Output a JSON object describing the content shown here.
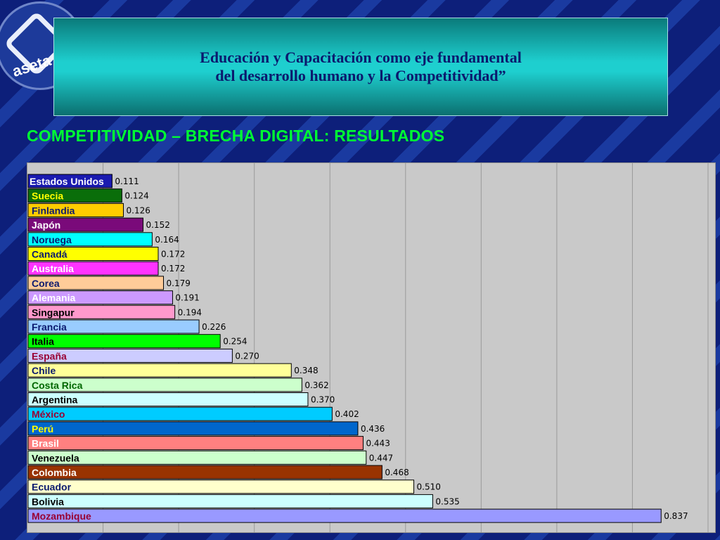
{
  "header": {
    "logo_text": "aseta",
    "title_line1": "Educación y Capacitación como eje fundamental",
    "title_line2": "del desarrollo humano y la Competitividad”"
  },
  "subtitle": "COMPETITIVIDAD – BRECHA DIGITAL: RESULTADOS",
  "chart_data": {
    "type": "bar",
    "orientation": "horizontal",
    "title": "",
    "xlabel": "",
    "ylabel": "",
    "xlim": [
      0,
      0.9
    ],
    "grid": true,
    "categories": [
      "Estados Unidos",
      "Suecia",
      "Finlandia",
      "Japón",
      "Noruega",
      "Canadá",
      "Australia",
      "Corea",
      "Alemania",
      "Singapur",
      "Francia",
      "Italia",
      "España",
      "Chile",
      "Costa Rica",
      "Argentina",
      "México",
      "Perú",
      "Brasil",
      "Venezuela",
      "Colombia",
      "Ecuador",
      "Bolivia",
      "Mozambique"
    ],
    "values": [
      0.111,
      0.124,
      0.126,
      0.152,
      0.164,
      0.172,
      0.172,
      0.179,
      0.191,
      0.194,
      0.226,
      0.254,
      0.27,
      0.348,
      0.362,
      0.37,
      0.402,
      0.436,
      0.443,
      0.447,
      0.468,
      0.51,
      0.535,
      0.837
    ],
    "value_labels": [
      "0.111",
      "0.124",
      "0.126",
      "0.152",
      "0.164",
      "0.172",
      "0.172",
      "0.179",
      "0.191",
      "0.194",
      "0.226",
      "0.254",
      "0.270",
      "0.348",
      "0.362",
      "0.370",
      "0.402",
      "0.436",
      "0.443",
      "0.447",
      "0.468",
      "0.510",
      "0.535",
      "0.837"
    ],
    "bar_colors": [
      "#1a1ab0",
      "#0a6e0a",
      "#ffcc00",
      "#7a0a7a",
      "#00ffff",
      "#ffff00",
      "#ff33ff",
      "#ffcc99",
      "#cc99ff",
      "#ff99cc",
      "#99ccff",
      "#00ff00",
      "#ccccff",
      "#ffff99",
      "#ccffcc",
      "#ccffff",
      "#00ccff",
      "#0066cc",
      "#ff8080",
      "#ccffcc",
      "#993300",
      "#ffffcc",
      "#ccffff",
      "#9999ff"
    ],
    "label_colors": [
      "#ffffff",
      "#ffff00",
      "#0b1a6e",
      "#ffffff",
      "#0b1a6e",
      "#0b1a6e",
      "#ffffff",
      "#0b1a6e",
      "#ffffff",
      "#000000",
      "#0b1a6e",
      "#000000",
      "#990033",
      "#0b1a6e",
      "#006600",
      "#000000",
      "#990033",
      "#ffff00",
      "#ffffff",
      "#000000",
      "#ffffff",
      "#0b1a6e",
      "#000000",
      "#990033"
    ]
  }
}
